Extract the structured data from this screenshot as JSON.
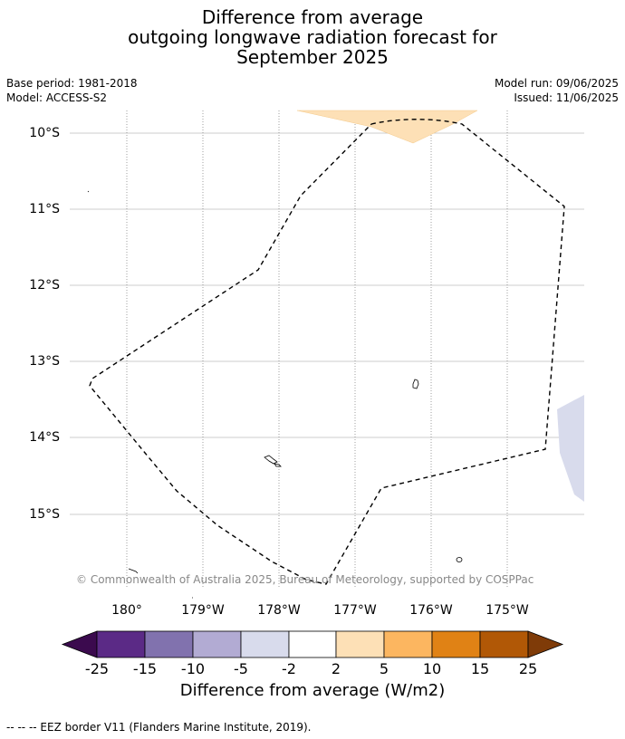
{
  "title": {
    "line1": "Difference from average",
    "line2": "outgoing longwave radiation forecast for",
    "line3": "September 2025"
  },
  "meta": {
    "base_period": "Base period: 1981-2018",
    "model": "Model: ACCESS-S2",
    "model_run": "Model run: 09/06/2025",
    "issued": "Issued: 11/06/2025"
  },
  "map": {
    "lat_labels": [
      "10°S",
      "11°S",
      "12°S",
      "13°S",
      "14°S",
      "15°S"
    ],
    "lon_labels": [
      "180°",
      "179°W",
      "178°W",
      "177°W",
      "176°W",
      "175°W"
    ],
    "copyright": "© Commonwealth of Australia 2025, Bureau of Meteorology, supported by COSPPac",
    "colors": {
      "eez_border": "#000000",
      "positive_small_anomaly": "#fde0b6",
      "negative_small_anomaly": "#d8dbec",
      "gridline": "#bbbbbb"
    }
  },
  "colorbar": {
    "ticks": [
      "-25",
      "-15",
      "-10",
      "-5",
      "-2",
      "2",
      "5",
      "10",
      "15",
      "25"
    ],
    "colors": [
      "#3b0a4e",
      "#5b2a86",
      "#8172ae",
      "#b2abd3",
      "#d8dbec",
      "#ffffff",
      "#fde0b6",
      "#fcb660",
      "#e08215",
      "#b15806",
      "#7f3b08"
    ],
    "label": "Difference from average (W/m2)"
  },
  "footer": {
    "legend": "--  --  -- EEZ border V11 (Flanders Marine Institute, 2019)."
  }
}
